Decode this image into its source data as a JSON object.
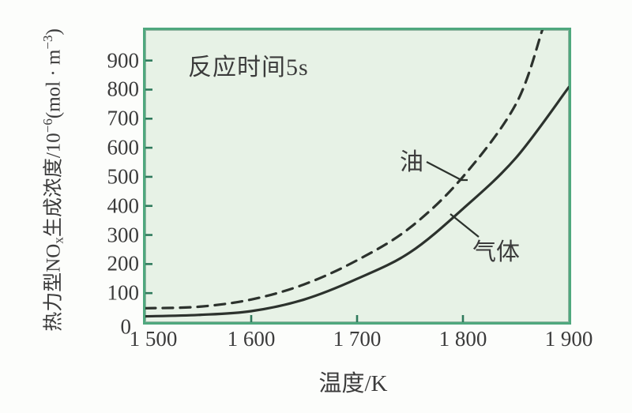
{
  "figure": {
    "annotation": "反应时间5s",
    "x_axis_title": "温度/K",
    "y_axis_title_parts": [
      {
        "text": "热力型NO"
      },
      {
        "text": "x"
      },
      {
        "text": "生成浓度/10"
      },
      {
        "text": "−6"
      },
      {
        "text": "(mol · m"
      },
      {
        "text": "−3"
      },
      {
        "text": ")"
      }
    ]
  },
  "chart_data": {
    "type": "line",
    "title": "",
    "annotation": "反应时间5s",
    "xlabel": "温度/K",
    "ylabel": "热力型NOx生成浓度/10^−6 (mol·m^−3)",
    "xlim": [
      1500,
      1900
    ],
    "ylim": [
      0,
      1005
    ],
    "grid": false,
    "legend_position": "inline-labels",
    "x_ticks": [
      1500,
      1600,
      1700,
      1800,
      1900
    ],
    "x_tick_labels": [
      "1 500",
      "1 600",
      "1 700",
      "1 800",
      "1 900"
    ],
    "y_ticks": [
      0,
      100,
      200,
      300,
      400,
      500,
      600,
      700,
      800,
      900
    ],
    "y_tick_labels": [
      "0",
      "100",
      "200",
      "300",
      "400",
      "500",
      "600",
      "700",
      "800",
      "900"
    ],
    "series": [
      {
        "name": "油",
        "line_style": "dashed",
        "x": [
          1500,
          1550,
          1600,
          1650,
          1700,
          1750,
          1800,
          1850,
          1875
        ],
        "values": [
          48,
          53,
          78,
          130,
          213,
          325,
          500,
          750,
          1005
        ]
      },
      {
        "name": "气体",
        "line_style": "solid",
        "x": [
          1500,
          1550,
          1600,
          1650,
          1700,
          1750,
          1800,
          1850,
          1900
        ],
        "values": [
          20,
          25,
          38,
          78,
          149,
          240,
          390,
          565,
          808
        ]
      }
    ]
  },
  "colors": {
    "plot_background": "#e7f2e6",
    "axis_border": "#4fa87e",
    "tick": "#2f7a5c",
    "curve": "#2c322d",
    "text": "#3b3b3b"
  }
}
